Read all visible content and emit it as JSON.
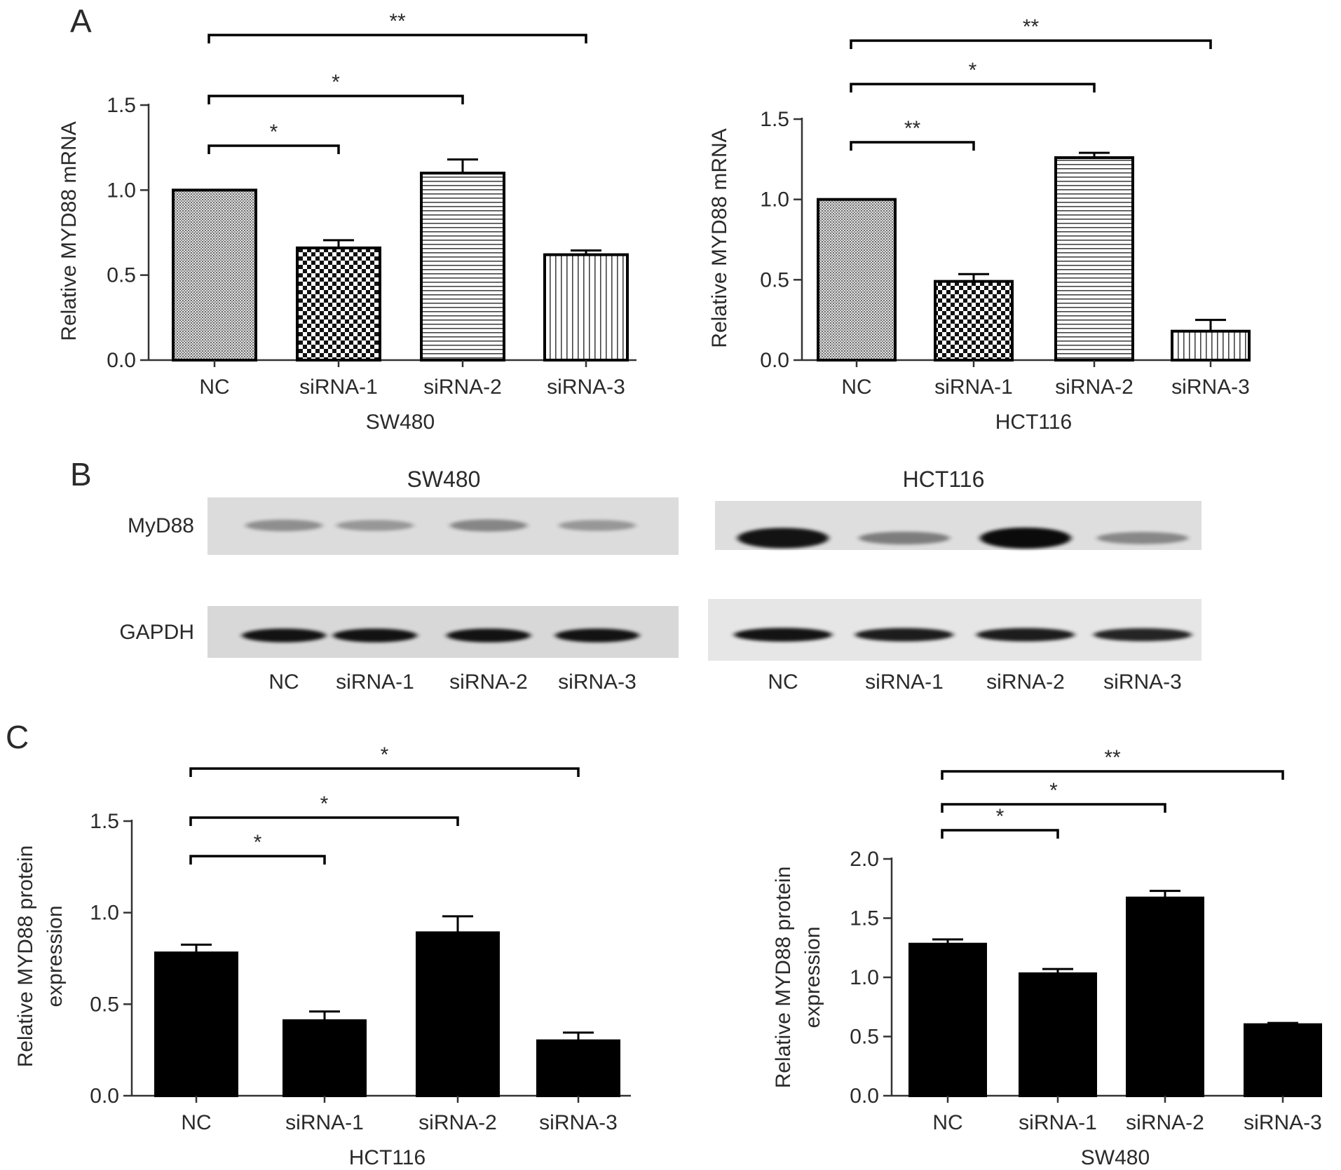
{
  "panel_labels": {
    "a": "A",
    "b": "B",
    "c": "C"
  },
  "chart_data": [
    {
      "id": "A-SW480",
      "type": "bar",
      "title": "",
      "xlabel": "SW480",
      "ylabel": "Relative MYD88 mRNA",
      "categories": [
        "NC",
        "siRNA-1",
        "siRNA-2",
        "siRNA-3"
      ],
      "values": [
        1.0,
        0.66,
        1.1,
        0.62
      ],
      "errors": [
        0.0,
        0.045,
        0.08,
        0.025
      ],
      "ylim": [
        0,
        1.5
      ],
      "yticks": [
        "0.0",
        "0.5",
        "1.0",
        "1.5"
      ],
      "fill_patterns": [
        "crosshatch",
        "checker",
        "horizontal-lines",
        "vertical-lines"
      ],
      "significance": [
        {
          "from": 0,
          "to": 1,
          "label": "*"
        },
        {
          "from": 0,
          "to": 2,
          "label": "*"
        },
        {
          "from": 0,
          "to": 3,
          "label": "**"
        }
      ]
    },
    {
      "id": "A-HCT116",
      "type": "bar",
      "title": "",
      "xlabel": "HCT116",
      "ylabel": "Relative MYD88 mRNA",
      "categories": [
        "NC",
        "siRNA-1",
        "siRNA-2",
        "siRNA-3"
      ],
      "values": [
        1.0,
        0.49,
        1.26,
        0.18
      ],
      "errors": [
        0.0,
        0.045,
        0.03,
        0.07
      ],
      "ylim": [
        0,
        1.5
      ],
      "yticks": [
        "0.0",
        "0.5",
        "1.0",
        "1.5"
      ],
      "fill_patterns": [
        "crosshatch",
        "checker",
        "horizontal-lines",
        "vertical-lines"
      ],
      "significance": [
        {
          "from": 0,
          "to": 1,
          "label": "**"
        },
        {
          "from": 0,
          "to": 2,
          "label": "*"
        },
        {
          "from": 0,
          "to": 3,
          "label": "**"
        }
      ]
    },
    {
      "id": "C-HCT116",
      "type": "bar",
      "title": "",
      "xlabel": "HCT116",
      "ylabel": [
        "Relative MYD88 protein",
        "expression"
      ],
      "categories": [
        "NC",
        "siRNA-1",
        "siRNA-2",
        "siRNA-3"
      ],
      "values": [
        0.78,
        0.41,
        0.89,
        0.3
      ],
      "errors": [
        0.045,
        0.05,
        0.09,
        0.045
      ],
      "ylim": [
        0,
        1.5
      ],
      "yticks": [
        "0.0",
        "0.5",
        "1.0",
        "1.5"
      ],
      "fill_patterns": [
        "solid",
        "solid",
        "solid",
        "solid"
      ],
      "significance": [
        {
          "from": 0,
          "to": 1,
          "label": "*"
        },
        {
          "from": 0,
          "to": 2,
          "label": "*"
        },
        {
          "from": 0,
          "to": 3,
          "label": "*"
        }
      ]
    },
    {
      "id": "C-SW480",
      "type": "bar",
      "title": "",
      "xlabel": "SW480",
      "ylabel": [
        "Relative MYD88 protein",
        "expression"
      ],
      "categories": [
        "NC",
        "siRNA-1",
        "siRNA-2",
        "siRNA-3"
      ],
      "values": [
        1.28,
        1.03,
        1.67,
        0.6
      ],
      "errors": [
        0.04,
        0.04,
        0.06,
        0.015
      ],
      "ylim": [
        0,
        2.0
      ],
      "yticks": [
        "0.0",
        "0.5",
        "1.0",
        "1.5",
        "2.0"
      ],
      "fill_patterns": [
        "solid",
        "solid",
        "solid",
        "solid"
      ],
      "significance": [
        {
          "from": 0,
          "to": 1,
          "label": "*"
        },
        {
          "from": 0,
          "to": 2,
          "label": "*"
        },
        {
          "from": 0,
          "to": 3,
          "label": "**"
        }
      ]
    }
  ],
  "western_blots": [
    {
      "id": "blot-SW480",
      "title": "SW480",
      "row_labels": [
        "MyD88",
        "GAPDH"
      ],
      "lane_labels": [
        "NC",
        "siRNA-1",
        "siRNA-2",
        "siRNA-3"
      ],
      "band_intensity": {
        "MyD88": [
          0.25,
          0.2,
          0.3,
          0.2
        ],
        "GAPDH": [
          0.95,
          0.95,
          0.95,
          0.95
        ]
      }
    },
    {
      "id": "blot-HCT116",
      "title": "HCT116",
      "row_labels": [],
      "lane_labels": [
        "NC",
        "siRNA-1",
        "siRNA-2",
        "siRNA-3"
      ],
      "band_intensity": {
        "MyD88": [
          0.95,
          0.35,
          1.0,
          0.3
        ],
        "GAPDH": [
          0.95,
          0.9,
          0.9,
          0.85
        ]
      }
    }
  ]
}
